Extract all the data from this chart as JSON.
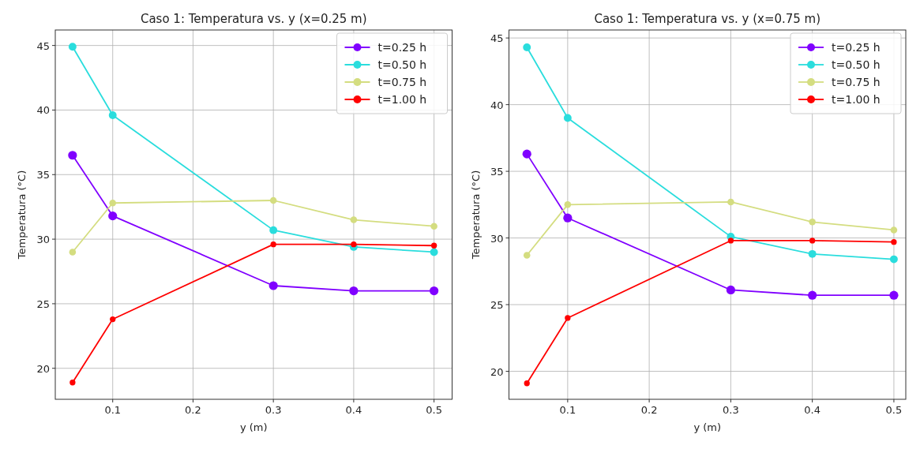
{
  "chart_data": [
    {
      "type": "line",
      "title": "Caso 1: Temperatura vs. y (x=0.25 m)",
      "xlabel": "y (m)",
      "ylabel": "Temperatura (°C)",
      "x": [
        0.05,
        0.1,
        0.3,
        0.4,
        0.5
      ],
      "xlim": [
        0.0285,
        0.5225
      ],
      "xticks": [
        {
          "value": 0.1,
          "label": "0.1"
        },
        {
          "value": 0.2,
          "label": "0.2"
        },
        {
          "value": 0.3,
          "label": "0.3"
        },
        {
          "value": 0.4,
          "label": "0.4"
        },
        {
          "value": 0.5,
          "label": "0.5"
        }
      ],
      "ylim": [
        17.6,
        46.2
      ],
      "yticks": [
        20,
        25,
        30,
        35,
        40,
        45
      ],
      "grid": true,
      "legend": "top right",
      "marker": "circle",
      "line_style": "solid",
      "series": [
        {
          "name": "t=0.25 h",
          "color": "#8000ff",
          "values": [
            36.5,
            31.8,
            26.4,
            26.0,
            26.0
          ]
        },
        {
          "name": "t=0.50 h",
          "color": "#2adddd",
          "values": [
            44.9,
            39.6,
            30.7,
            29.4,
            29.0
          ]
        },
        {
          "name": "t=0.75 h",
          "color": "#d4dd80",
          "values": [
            29.0,
            32.8,
            33.0,
            31.5,
            31.0
          ]
        },
        {
          "name": "t=1.00 h",
          "color": "#ff0000",
          "values": [
            18.9,
            23.8,
            29.6,
            29.6,
            29.5
          ]
        }
      ]
    },
    {
      "type": "line",
      "title": "Caso 1: Temperatura vs. y (x=0.75 m)",
      "xlabel": "y (m)",
      "ylabel": "Temperatura (°C)",
      "x": [
        0.05,
        0.1,
        0.3,
        0.4,
        0.5
      ],
      "xlim": [
        0.028,
        0.5146
      ],
      "xticks": [
        {
          "value": 0.1,
          "label": "0.1"
        },
        {
          "value": 0.2,
          "label": "0.2"
        },
        {
          "value": 0.3,
          "label": "0.3"
        },
        {
          "value": 0.4,
          "label": "0.4"
        },
        {
          "value": 0.5,
          "label": "0.5"
        }
      ],
      "ylim": [
        17.9,
        45.6
      ],
      "yticks": [
        20,
        25,
        30,
        35,
        40,
        45
      ],
      "grid": true,
      "legend": "top right",
      "marker": "circle",
      "line_style": "solid",
      "series": [
        {
          "name": "t=0.25 h",
          "color": "#8000ff",
          "values": [
            36.3,
            31.5,
            26.1,
            25.7,
            25.7
          ]
        },
        {
          "name": "t=0.50 h",
          "color": "#2adddd",
          "values": [
            44.3,
            39.0,
            30.1,
            28.8,
            28.4
          ]
        },
        {
          "name": "t=0.75 h",
          "color": "#d4dd80",
          "values": [
            28.7,
            32.5,
            32.7,
            31.2,
            30.6
          ]
        },
        {
          "name": "t=1.00 h",
          "color": "#ff0000",
          "values": [
            19.1,
            24.0,
            29.8,
            29.8,
            29.7
          ]
        }
      ]
    }
  ]
}
